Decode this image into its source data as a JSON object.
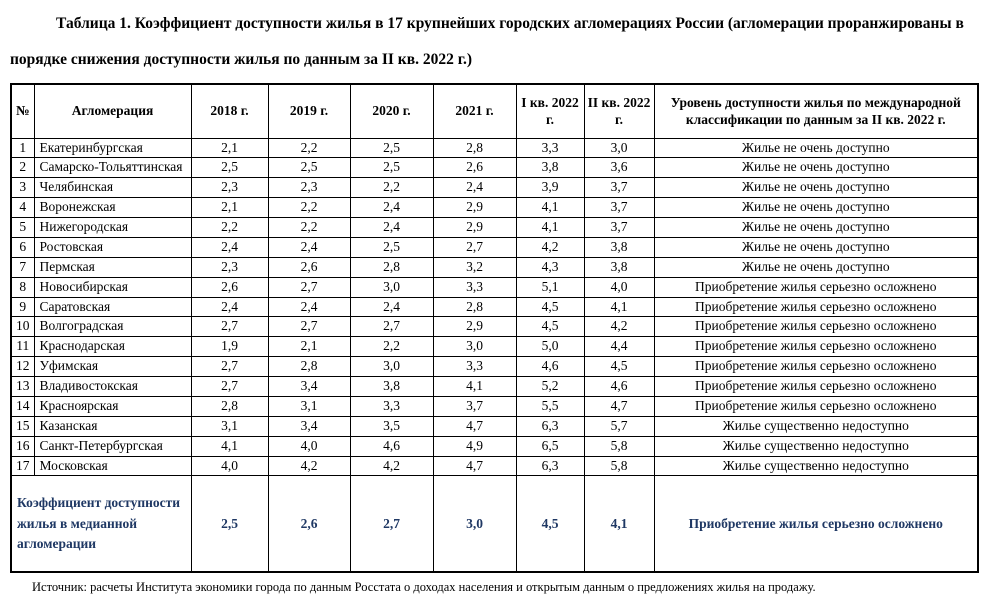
{
  "title": "Таблица 1. Коэффициент доступности жилья в 17 крупнейших городских агломерациях России (агломерации проранжированы в порядке снижения доступности жилья по данным за II кв. 2022 г.)",
  "table": {
    "headers": [
      "№",
      "Агломерация",
      "2018 г.",
      "2019 г.",
      "2020 г.",
      "2021 г.",
      "I кв. 2022 г.",
      "II кв. 2022 г.",
      "Уровень доступности жилья по международной классификации по данным за II кв. 2022 г."
    ],
    "rows": [
      {
        "num": "1",
        "name": "Екатеринбургская",
        "values": [
          "2,1",
          "2,2",
          "2,5",
          "2,8",
          "3,3",
          "3,0"
        ],
        "level": "Жилье не очень доступно"
      },
      {
        "num": "2",
        "name": "Самарско-Тольяттинская",
        "values": [
          "2,5",
          "2,5",
          "2,5",
          "2,6",
          "3,8",
          "3,6"
        ],
        "level": "Жилье не очень доступно"
      },
      {
        "num": "3",
        "name": "Челябинская",
        "values": [
          "2,3",
          "2,3",
          "2,2",
          "2,4",
          "3,9",
          "3,7"
        ],
        "level": "Жилье не очень доступно"
      },
      {
        "num": "4",
        "name": "Воронежская",
        "values": [
          "2,1",
          "2,2",
          "2,4",
          "2,9",
          "4,1",
          "3,7"
        ],
        "level": "Жилье не очень доступно"
      },
      {
        "num": "5",
        "name": "Нижегородская",
        "values": [
          "2,2",
          "2,2",
          "2,4",
          "2,9",
          "4,1",
          "3,7"
        ],
        "level": "Жилье не очень доступно"
      },
      {
        "num": "6",
        "name": "Ростовская",
        "values": [
          "2,4",
          "2,4",
          "2,5",
          "2,7",
          "4,2",
          "3,8"
        ],
        "level": "Жилье не очень доступно"
      },
      {
        "num": "7",
        "name": "Пермская",
        "values": [
          "2,3",
          "2,6",
          "2,8",
          "3,2",
          "4,3",
          "3,8"
        ],
        "level": "Жилье не очень доступно"
      },
      {
        "num": "8",
        "name": "Новосибирская",
        "values": [
          "2,6",
          "2,7",
          "3,0",
          "3,3",
          "5,1",
          "4,0"
        ],
        "level": "Приобретение жилья серьезно осложнено"
      },
      {
        "num": "9",
        "name": "Саратовская",
        "values": [
          "2,4",
          "2,4",
          "2,4",
          "2,8",
          "4,5",
          "4,1"
        ],
        "level": "Приобретение жилья серьезно осложнено"
      },
      {
        "num": "10",
        "name": "Волгоградская",
        "values": [
          "2,7",
          "2,7",
          "2,7",
          "2,9",
          "4,5",
          "4,2"
        ],
        "level": "Приобретение жилья серьезно осложнено"
      },
      {
        "num": "11",
        "name": "Краснодарская",
        "values": [
          "1,9",
          "2,1",
          "2,2",
          "3,0",
          "5,0",
          "4,4"
        ],
        "level": "Приобретение жилья серьезно осложнено"
      },
      {
        "num": "12",
        "name": "Уфимская",
        "values": [
          "2,7",
          "2,8",
          "3,0",
          "3,3",
          "4,6",
          "4,5"
        ],
        "level": "Приобретение жилья серьезно осложнено"
      },
      {
        "num": "13",
        "name": "Владивостокская",
        "values": [
          "2,7",
          "3,4",
          "3,8",
          "4,1",
          "5,2",
          "4,6"
        ],
        "level": "Приобретение жилья серьезно осложнено"
      },
      {
        "num": "14",
        "name": "Красноярская",
        "values": [
          "2,8",
          "3,1",
          "3,3",
          "3,7",
          "5,5",
          "4,7"
        ],
        "level": "Приобретение жилья серьезно осложнено"
      },
      {
        "num": "15",
        "name": "Казанская",
        "values": [
          "3,1",
          "3,4",
          "3,5",
          "4,7",
          "6,3",
          "5,7"
        ],
        "level": "Жилье существенно недоступно"
      },
      {
        "num": "16",
        "name": "Санкт-Петербургская",
        "values": [
          "4,1",
          "4,0",
          "4,6",
          "4,9",
          "6,5",
          "5,8"
        ],
        "level": "Жилье существенно недоступно"
      },
      {
        "num": "17",
        "name": "Московская",
        "values": [
          "4,0",
          "4,2",
          "4,2",
          "4,7",
          "6,3",
          "5,8"
        ],
        "level": "Жилье существенно недоступно"
      }
    ],
    "summary": {
      "label": "Коэффициент доступности жилья в медианной агломерации",
      "values": [
        "2,5",
        "2,6",
        "2,7",
        "3,0",
        "4,5",
        "4,1"
      ],
      "level": "Приобретение жилья серьезно осложнено"
    }
  },
  "source": "Источник: расчеты Института экономики города по данным Росстата о доходах населения и открытым данным о предложениях жилья на продажу.",
  "colors": {
    "text": "#000000",
    "summary_text": "#1F3864",
    "border": "#000000",
    "background": "#FFFFFF"
  }
}
